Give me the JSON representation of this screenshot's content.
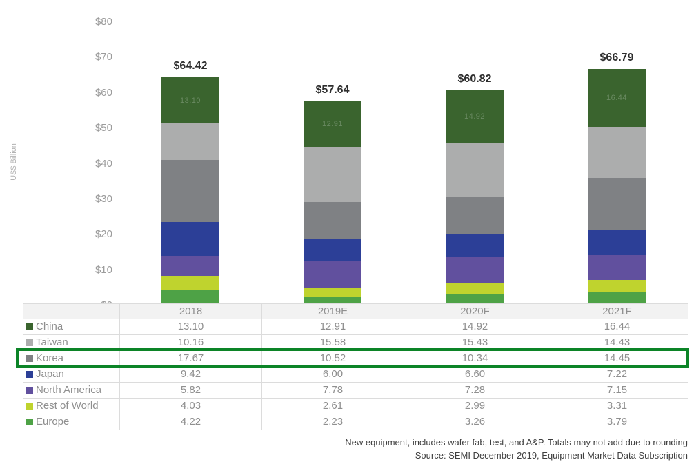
{
  "chart": {
    "footnote1": "New equipment, includes wafer fab, test, and A&P. Totals may not add due to rounding",
    "footnote2": "Source: SEMI December 2019, Equipment Market Data Subscription"
  },
  "chart_data": {
    "type": "bar",
    "stacked": true,
    "ylabel": "US$ Billion",
    "ylim": [
      0,
      80
    ],
    "grid": false,
    "ytick_labels": [
      "$0",
      "$10",
      "$20",
      "$30",
      "$40",
      "$50",
      "$60",
      "$70",
      "$80"
    ],
    "categories": [
      "2018",
      "2019E",
      "2020F",
      "2021F"
    ],
    "series": [
      {
        "name": "China",
        "color": "#3a642e",
        "values": [
          13.1,
          12.91,
          14.92,
          16.44
        ],
        "display": [
          "13.10",
          "12.91",
          "14.92",
          "16.44"
        ]
      },
      {
        "name": "Taiwan",
        "color": "#acadad",
        "values": [
          10.16,
          15.58,
          15.43,
          14.43
        ],
        "display": [
          "10.16",
          "15.58",
          "15.43",
          "14.43"
        ]
      },
      {
        "name": "Korea",
        "color": "#7f8184",
        "values": [
          17.67,
          10.52,
          10.34,
          14.45
        ],
        "display": [
          "17.67",
          "10.52",
          "10.34",
          "14.45"
        ]
      },
      {
        "name": "Japan",
        "color": "#2c3f97",
        "values": [
          9.42,
          6.0,
          6.6,
          7.22
        ],
        "display": [
          "9.42",
          "6.00",
          "6.60",
          "7.22"
        ]
      },
      {
        "name": "North America",
        "color": "#61509e",
        "values": [
          5.82,
          7.78,
          7.28,
          7.15
        ],
        "display": [
          "5.82",
          "7.78",
          "7.28",
          "7.15"
        ]
      },
      {
        "name": "Rest of World",
        "color": "#bfd32e",
        "values": [
          4.03,
          2.61,
          2.99,
          3.31
        ],
        "display": [
          "4.03",
          "2.61",
          "2.99",
          "3.31"
        ]
      },
      {
        "name": "Europe",
        "color": "#4ea246",
        "values": [
          4.22,
          2.23,
          3.26,
          3.79
        ],
        "display": [
          "4.22",
          "2.23",
          "3.26",
          "3.79"
        ]
      }
    ],
    "totals": [
      "$64.42",
      "$57.64",
      "$60.82",
      "$66.79"
    ],
    "inner_labeled_series": "China",
    "highlighted_row": "Korea",
    "highlight_color": "#0c8427",
    "legend_position": "table-left-column"
  }
}
